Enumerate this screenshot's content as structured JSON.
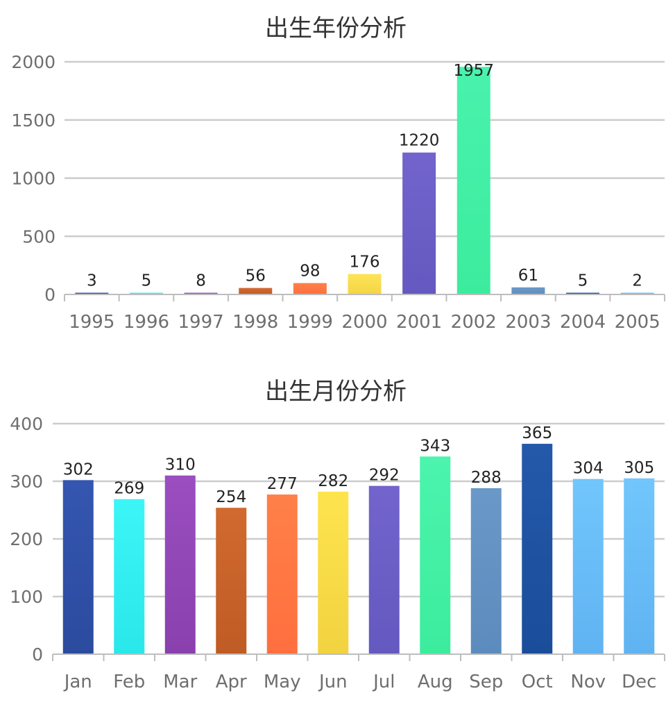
{
  "chart_data": [
    {
      "type": "bar",
      "title": "出生年份分析",
      "xlabel": "",
      "ylabel": "",
      "ylim": [
        0,
        2000
      ],
      "yticks": [
        0,
        500,
        1000,
        1500,
        2000
      ],
      "grid": true,
      "categories": [
        "1995",
        "1996",
        "1997",
        "1998",
        "1999",
        "2000",
        "2001",
        "2002",
        "2003",
        "2004",
        "2005"
      ],
      "values": [
        3,
        5,
        8,
        56,
        98,
        176,
        1220,
        1957,
        61,
        5,
        2
      ],
      "colors": [
        [
          "#3f5fb5",
          "#2e4a9e"
        ],
        [
          "#49f3f7",
          "#2ee6ea"
        ],
        [
          "#a45dc8",
          "#8a3fb0"
        ],
        [
          "#d46b32",
          "#bf5a24"
        ],
        [
          "#ff8048",
          "#ff7040"
        ],
        [
          "#fde456",
          "#f4d545"
        ],
        [
          "#7264cc",
          "#6459c0"
        ],
        [
          "#49f2ad",
          "#3cec9e"
        ],
        [
          "#6b99c9",
          "#5f8dbd"
        ],
        [
          "#2b5fae",
          "#1c4e9c"
        ],
        [
          "#71c5fc",
          "#63b6f5"
        ]
      ]
    },
    {
      "type": "bar",
      "title": "出生月份分析",
      "xlabel": "",
      "ylabel": "",
      "ylim": [
        0,
        400
      ],
      "yticks": [
        0,
        100,
        200,
        300,
        400
      ],
      "grid": true,
      "categories": [
        "Jan",
        "Feb",
        "Mar",
        "Apr",
        "May",
        "Jun",
        "Jul",
        "Aug",
        "Sep",
        "Oct",
        "Nov",
        "Dec"
      ],
      "values": [
        302,
        269,
        310,
        254,
        277,
        282,
        292,
        343,
        288,
        365,
        304,
        305
      ],
      "colors": [
        [
          "#3556b0",
          "#2b4b9f"
        ],
        [
          "#3cf5f7",
          "#2ae7ea"
        ],
        [
          "#9a4ec0",
          "#8a40ad"
        ],
        [
          "#d06a30",
          "#bf5b24"
        ],
        [
          "#ff8048",
          "#ff6f3f"
        ],
        [
          "#fde44e",
          "#f2d240"
        ],
        [
          "#7264cc",
          "#6459c0"
        ],
        [
          "#4cf4ad",
          "#3cec9d"
        ],
        [
          "#6a98c8",
          "#5c8bbd"
        ],
        [
          "#2459aa",
          "#1a4d9a"
        ],
        [
          "#71c6fc",
          "#60b3f2"
        ],
        [
          "#71c6fc",
          "#60b3f2"
        ]
      ]
    }
  ]
}
